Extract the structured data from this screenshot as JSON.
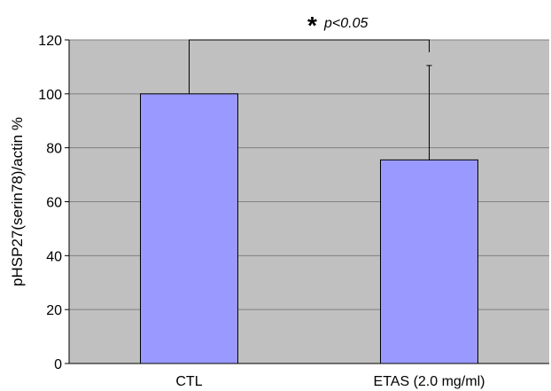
{
  "chart_data": {
    "type": "bar",
    "categories": [
      "CTL",
      "ETAS (2.0 mg/ml)"
    ],
    "values": [
      100,
      75.5
    ],
    "error_upper": [
      0,
      35
    ],
    "xlabel": "",
    "ylabel": "pHSP27(serin78)/actin %",
    "ylim": [
      0,
      120
    ],
    "yticks": [
      0,
      20,
      40,
      60,
      80,
      100,
      120
    ],
    "grid": true,
    "legend": "none",
    "annotation": {
      "star": "*",
      "text": "p<0.05"
    },
    "colors": {
      "bar": "#9999ff",
      "plot_bg": "#c0c0c0",
      "grid": "#808080"
    }
  }
}
